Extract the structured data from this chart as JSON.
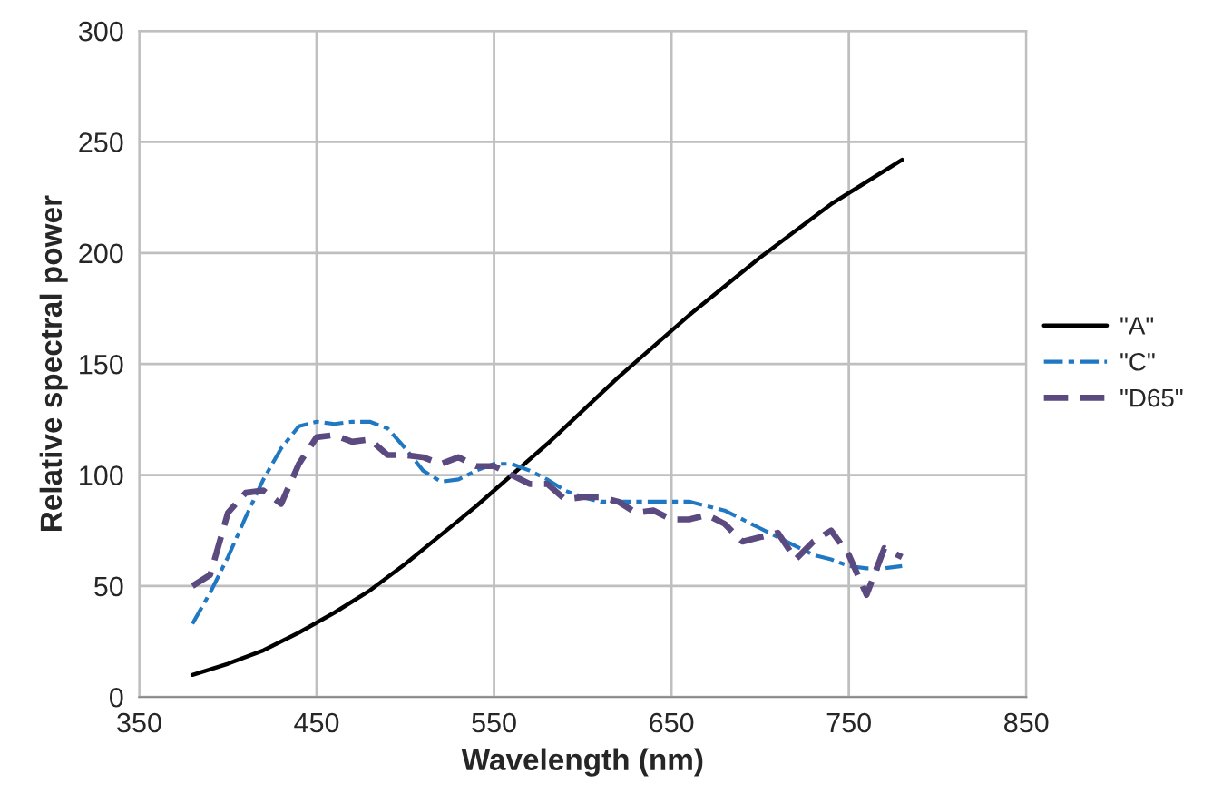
{
  "chart_data": {
    "type": "line",
    "xlabel": "Wavelength (nm)",
    "ylabel": "Relative spectral power",
    "xlim": [
      350,
      850
    ],
    "xticks": [
      350,
      450,
      550,
      650,
      750,
      850
    ],
    "ylim": [
      0,
      300
    ],
    "yticks": [
      0,
      50,
      100,
      150,
      200,
      250,
      300
    ],
    "grid": true,
    "legend": "right",
    "series": [
      {
        "name": "\"A\"",
        "color": "#000000",
        "line_style": "solid",
        "x": [
          380,
          400,
          420,
          440,
          460,
          480,
          500,
          520,
          540,
          560,
          580,
          600,
          620,
          640,
          660,
          680,
          700,
          720,
          740,
          760,
          780
        ],
        "values": [
          10,
          15,
          21,
          29,
          38,
          48,
          60,
          73,
          86,
          100,
          114,
          129,
          144,
          158,
          172,
          185,
          198,
          210,
          222,
          232,
          242
        ]
      },
      {
        "name": "\"C\"",
        "color": "#1f78c1",
        "line_style": "dashdot",
        "x": [
          380,
          390,
          400,
          410,
          420,
          430,
          440,
          450,
          460,
          470,
          480,
          490,
          500,
          510,
          520,
          530,
          540,
          550,
          560,
          570,
          580,
          590,
          600,
          610,
          620,
          630,
          640,
          650,
          660,
          670,
          680,
          690,
          700,
          710,
          720,
          730,
          740,
          750,
          760,
          770,
          780
        ],
        "values": [
          33,
          47,
          63,
          81,
          98,
          112,
          122,
          124,
          123,
          124,
          124,
          121,
          112,
          102,
          97,
          98,
          102,
          105,
          105,
          102,
          98,
          93,
          90,
          88,
          88,
          88,
          88,
          88,
          88,
          86,
          84,
          80,
          76,
          72,
          68,
          64,
          62,
          59,
          58,
          58,
          59
        ]
      },
      {
        "name": "\"D65\"",
        "color": "#5b4a80",
        "line_style": "dashed",
        "x": [
          380,
          390,
          400,
          410,
          420,
          430,
          440,
          450,
          460,
          470,
          480,
          490,
          500,
          510,
          520,
          530,
          540,
          550,
          560,
          570,
          580,
          590,
          600,
          610,
          620,
          630,
          640,
          650,
          660,
          670,
          680,
          690,
          700,
          710,
          720,
          730,
          740,
          750,
          760,
          770,
          780
        ],
        "values": [
          50,
          55,
          83,
          92,
          93,
          87,
          105,
          117,
          118,
          115,
          116,
          109,
          109,
          108,
          105,
          108,
          104,
          104,
          100,
          96,
          96,
          89,
          90,
          90,
          88,
          83,
          84,
          80,
          80,
          82,
          78,
          70,
          72,
          74,
          62,
          70,
          75,
          64,
          46,
          67,
          63
        ]
      }
    ]
  }
}
